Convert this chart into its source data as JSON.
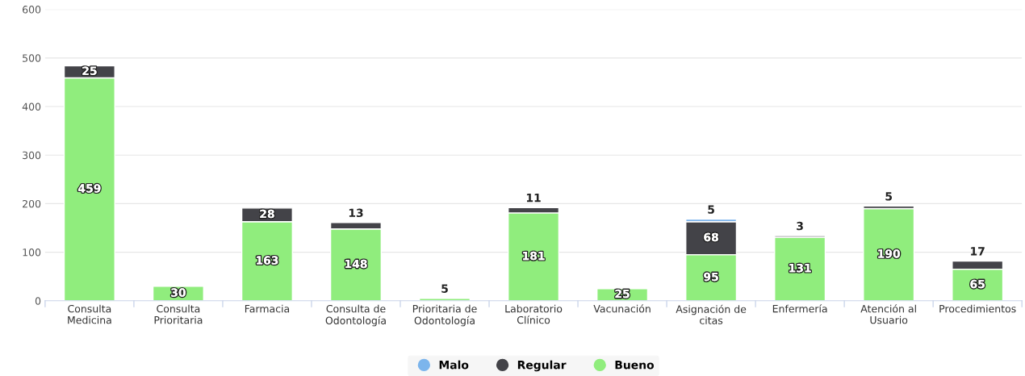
{
  "chart_data": {
    "type": "bar",
    "stacked": true,
    "categories": [
      "Consulta\nMedicina",
      "Consulta\nPrioritaria",
      "Farmacia",
      "Consulta de\nOdontología",
      "Prioritaria de\nOdontología",
      "Laboratorio\nClínico",
      "Vacunación",
      "Asignación de\ncitas",
      "Enfermería",
      "Atención al\nUsuario",
      "Procedimientos"
    ],
    "series": [
      {
        "name": "Bueno",
        "color": "#90ed7d",
        "values": [
          459,
          30,
          163,
          148,
          5,
          181,
          25,
          95,
          131,
          190,
          65
        ]
      },
      {
        "name": "Regular",
        "color": "#434348",
        "values": [
          25,
          null,
          28,
          13,
          null,
          11,
          null,
          68,
          3,
          5,
          17
        ]
      },
      {
        "name": "Malo",
        "color": "#7cb5ec",
        "values": [
          null,
          null,
          null,
          null,
          null,
          null,
          null,
          5,
          null,
          null,
          null
        ]
      }
    ],
    "ylim": [
      0,
      600
    ],
    "yticks": [
      0,
      100,
      200,
      300,
      400,
      500,
      600
    ],
    "grid": "y",
    "legend": "bottom",
    "data_labels": true
  }
}
